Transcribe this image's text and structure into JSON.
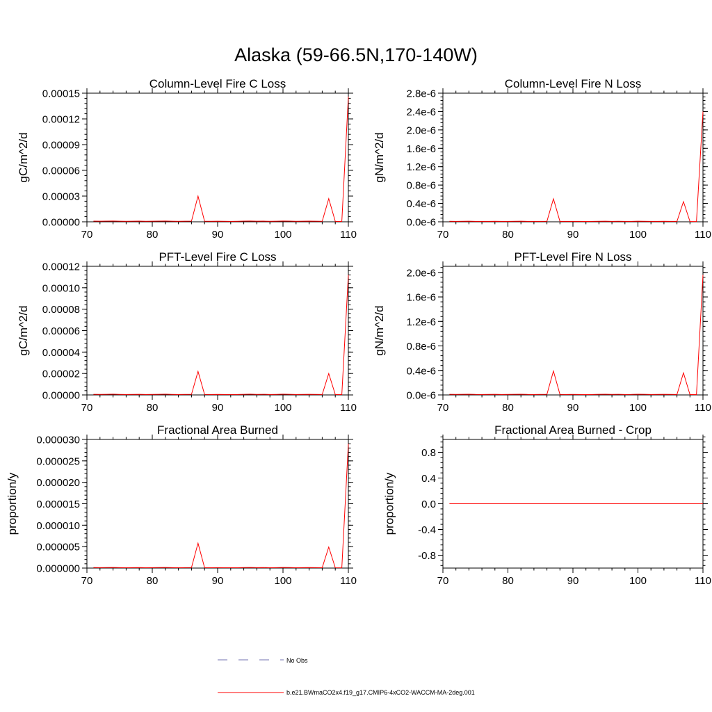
{
  "page_title": "Alaska (59-66.5N,170-140W)",
  "colors": {
    "model_line": "#ff0000",
    "obs_line": "#7070b0",
    "axis": "#000000"
  },
  "legend": {
    "obs_label": "No Obs",
    "model_label": "b.e21.BWmaCO2x4.f19_g17.CMIP6-4xCO2-WACCM-MA-2deg.001"
  },
  "chart_data": [
    {
      "type": "line",
      "title": "Column-Level Fire C Loss",
      "ylabel": "gC/m^2/d",
      "xlabel": "",
      "xlim": [
        70,
        110
      ],
      "ylim": [
        0,
        0.00015
      ],
      "xticks": [
        70,
        80,
        90,
        100,
        110
      ],
      "xtick_labels": [
        "70",
        "80",
        "90",
        "100",
        "110"
      ],
      "yticks": [
        0,
        3e-05,
        6e-05,
        9e-05,
        0.00012,
        0.00015
      ],
      "ytick_labels": [
        "0.00000",
        "0.00003",
        "0.00006",
        "0.00009",
        "0.00012",
        "0.00015"
      ],
      "series": [
        {
          "name": "b.e21.BWmaCO2x4.f19_g17.CMIP6-4xCO2-WACCM-MA-2deg.001",
          "x": [
            71,
            72,
            73,
            74,
            75,
            76,
            77,
            78,
            79,
            80,
            81,
            82,
            83,
            84,
            85,
            86,
            87,
            88,
            89,
            90,
            91,
            92,
            93,
            94,
            95,
            96,
            97,
            98,
            99,
            100,
            101,
            102,
            103,
            104,
            105,
            106,
            107,
            108,
            109,
            110
          ],
          "y": [
            8e-07,
            7e-07,
            8e-07,
            9e-07,
            7e-07,
            6e-07,
            7e-07,
            8e-07,
            6e-07,
            7e-07,
            8e-07,
            9e-07,
            7e-07,
            6e-07,
            7e-07,
            8e-07,
            3e-05,
            7e-07,
            6e-07,
            7e-07,
            6e-07,
            5e-07,
            6e-07,
            8e-07,
            9e-07,
            7e-07,
            8e-07,
            6e-07,
            7e-07,
            9e-07,
            8e-07,
            6e-07,
            7e-07,
            8e-07,
            7e-07,
            6e-07,
            2.7e-05,
            5e-07,
            4e-07,
            0.000146
          ]
        }
      ]
    },
    {
      "type": "line",
      "title": "Column-Level Fire N Loss",
      "ylabel": "gN/m^2/d",
      "xlabel": "",
      "xlim": [
        70,
        110
      ],
      "ylim": [
        0,
        2.8e-06
      ],
      "xticks": [
        70,
        80,
        90,
        100,
        110
      ],
      "xtick_labels": [
        "70",
        "80",
        "90",
        "100",
        "110"
      ],
      "yticks": [
        0,
        4e-07,
        8e-07,
        1.2e-06,
        1.6e-06,
        2e-06,
        2.4e-06,
        2.8e-06
      ],
      "ytick_labels": [
        "0.0e-6",
        "0.4e-6",
        "0.8e-6",
        "1.2e-6",
        "1.6e-6",
        "2.0e-6",
        "2.4e-6",
        "2.8e-6"
      ],
      "series": [
        {
          "name": "b.e21.BWmaCO2x4.f19_g17.CMIP6-4xCO2-WACCM-MA-2deg.001",
          "x": [
            71,
            72,
            73,
            74,
            75,
            76,
            77,
            78,
            79,
            80,
            81,
            82,
            83,
            84,
            85,
            86,
            87,
            88,
            89,
            90,
            91,
            92,
            93,
            94,
            95,
            96,
            97,
            98,
            99,
            100,
            101,
            102,
            103,
            104,
            105,
            106,
            107,
            108,
            109,
            110
          ],
          "y": [
            1.2e-08,
            1e-08,
            1.2e-08,
            1.4e-08,
            1e-08,
            9e-09,
            1e-08,
            1.2e-08,
            9e-09,
            1e-08,
            1.2e-08,
            1.4e-08,
            1e-08,
            9e-09,
            1e-08,
            1.2e-08,
            5e-07,
            1e-08,
            9e-09,
            1e-08,
            9e-09,
            8e-09,
            9e-09,
            1.2e-08,
            1.4e-08,
            1e-08,
            1.2e-08,
            9e-09,
            1e-08,
            1.4e-08,
            1.2e-08,
            9e-09,
            1e-08,
            1.2e-08,
            1e-08,
            9e-09,
            4.4e-07,
            8e-09,
            6e-09,
            2.4e-06
          ]
        }
      ]
    },
    {
      "type": "line",
      "title": "PFT-Level Fire C Loss",
      "ylabel": "gC/m^2/d",
      "xlabel": "",
      "xlim": [
        70,
        110
      ],
      "ylim": [
        0,
        0.00012
      ],
      "xticks": [
        70,
        80,
        90,
        100,
        110
      ],
      "xtick_labels": [
        "70",
        "80",
        "90",
        "100",
        "110"
      ],
      "yticks": [
        0,
        2e-05,
        4e-05,
        6e-05,
        8e-05,
        0.0001,
        0.00012
      ],
      "ytick_labels": [
        "0.00000",
        "0.00002",
        "0.00004",
        "0.00006",
        "0.00008",
        "0.00010",
        "0.00012"
      ],
      "series": [
        {
          "name": "b.e21.BWmaCO2x4.f19_g17.CMIP6-4xCO2-WACCM-MA-2deg.001",
          "x": [
            71,
            72,
            73,
            74,
            75,
            76,
            77,
            78,
            79,
            80,
            81,
            82,
            83,
            84,
            85,
            86,
            87,
            88,
            89,
            90,
            91,
            92,
            93,
            94,
            95,
            96,
            97,
            98,
            99,
            100,
            101,
            102,
            103,
            104,
            105,
            106,
            107,
            108,
            109,
            110
          ],
          "y": [
            6e-07,
            5e-07,
            6e-07,
            7e-07,
            5e-07,
            4e-07,
            5e-07,
            6e-07,
            4e-07,
            5e-07,
            6e-07,
            7e-07,
            5e-07,
            4e-07,
            5e-07,
            6e-07,
            2.2e-05,
            5e-07,
            4e-07,
            5e-07,
            4e-07,
            4e-07,
            4e-07,
            6e-07,
            7e-07,
            5e-07,
            6e-07,
            4e-07,
            5e-07,
            7e-07,
            6e-07,
            4e-07,
            5e-07,
            6e-07,
            5e-07,
            4e-07,
            2e-05,
            4e-07,
            3e-07,
            0.000112
          ]
        }
      ]
    },
    {
      "type": "line",
      "title": "PFT-Level Fire N Loss",
      "ylabel": "gN/m^2/d",
      "xlabel": "",
      "xlim": [
        70,
        110
      ],
      "ylim": [
        0,
        2.1e-06
      ],
      "xticks": [
        70,
        80,
        90,
        100,
        110
      ],
      "xtick_labels": [
        "70",
        "80",
        "90",
        "100",
        "110"
      ],
      "yticks": [
        0,
        4e-07,
        8e-07,
        1.2e-06,
        1.6e-06,
        2e-06
      ],
      "ytick_labels": [
        "0.0e-6",
        "0.4e-6",
        "0.8e-6",
        "1.2e-6",
        "1.6e-6",
        "2.0e-6"
      ],
      "series": [
        {
          "name": "b.e21.BWmaCO2x4.f19_g17.CMIP6-4xCO2-WACCM-MA-2deg.001",
          "x": [
            71,
            72,
            73,
            74,
            75,
            76,
            77,
            78,
            79,
            80,
            81,
            82,
            83,
            84,
            85,
            86,
            87,
            88,
            89,
            90,
            91,
            92,
            93,
            94,
            95,
            96,
            97,
            98,
            99,
            100,
            101,
            102,
            103,
            104,
            105,
            106,
            107,
            108,
            109,
            110
          ],
          "y": [
            1e-08,
            8e-09,
            1e-08,
            1.2e-08,
            8e-09,
            7e-09,
            8e-09,
            1e-08,
            7e-09,
            8e-09,
            1e-08,
            1.2e-08,
            8e-09,
            7e-09,
            8e-09,
            1e-08,
            3.9e-07,
            8e-09,
            7e-09,
            8e-09,
            7e-09,
            6e-09,
            7e-09,
            1e-08,
            1.2e-08,
            8e-09,
            1e-08,
            7e-09,
            8e-09,
            1.2e-08,
            1e-08,
            7e-09,
            8e-09,
            1e-08,
            8e-09,
            7e-09,
            3.6e-07,
            6e-09,
            5e-09,
            1.96e-06
          ]
        }
      ]
    },
    {
      "type": "line",
      "title": "Fractional Area Burned",
      "ylabel": "proportion/y",
      "xlabel": "",
      "xlim": [
        70,
        110
      ],
      "ylim": [
        0,
        3e-05
      ],
      "xticks": [
        70,
        80,
        90,
        100,
        110
      ],
      "xtick_labels": [
        "70",
        "80",
        "90",
        "100",
        "110"
      ],
      "yticks": [
        0,
        5e-06,
        1e-05,
        1.5e-05,
        2e-05,
        2.5e-05,
        3e-05
      ],
      "ytick_labels": [
        "0.000000",
        "0.000005",
        "0.000010",
        "0.000015",
        "0.000020",
        "0.000025",
        "0.000030"
      ],
      "series": [
        {
          "name": "b.e21.BWmaCO2x4.f19_g17.CMIP6-4xCO2-WACCM-MA-2deg.001",
          "x": [
            71,
            72,
            73,
            74,
            75,
            76,
            77,
            78,
            79,
            80,
            81,
            82,
            83,
            84,
            85,
            86,
            87,
            88,
            89,
            90,
            91,
            92,
            93,
            94,
            95,
            96,
            97,
            98,
            99,
            100,
            101,
            102,
            103,
            104,
            105,
            106,
            107,
            108,
            109,
            110
          ],
          "y": [
            1.2e-07,
            1e-07,
            1.2e-07,
            1.4e-07,
            1e-07,
            9e-08,
            1e-07,
            1.2e-07,
            9e-08,
            1e-07,
            1.2e-07,
            1.4e-07,
            1e-07,
            9e-08,
            1e-07,
            1.2e-07,
            5.8e-06,
            1e-07,
            9e-08,
            1e-07,
            9e-08,
            8e-08,
            9e-08,
            1.2e-07,
            1.4e-07,
            1e-07,
            1.2e-07,
            9e-08,
            1e-07,
            1.4e-07,
            1.2e-07,
            9e-08,
            1e-07,
            1.2e-07,
            1e-07,
            9e-08,
            4.9e-06,
            8e-08,
            6e-08,
            2.9e-05
          ]
        }
      ]
    },
    {
      "type": "line",
      "title": "Fractional Area Burned - Crop",
      "ylabel": "proportion/y",
      "xlabel": "",
      "xlim": [
        70,
        110
      ],
      "ylim": [
        -1,
        1
      ],
      "xticks": [
        70,
        80,
        90,
        100,
        110
      ],
      "xtick_labels": [
        "70",
        "80",
        "90",
        "100",
        "110"
      ],
      "yticks": [
        -0.8,
        -0.4,
        0,
        0.4,
        0.8
      ],
      "ytick_labels": [
        "-0.8",
        "-0.4",
        "0.0",
        "0.4",
        "0.8"
      ],
      "series": [
        {
          "name": "b.e21.BWmaCO2x4.f19_g17.CMIP6-4xCO2-WACCM-MA-2deg.001",
          "x": [
            71,
            110
          ],
          "y": [
            0,
            0
          ]
        }
      ]
    }
  ]
}
